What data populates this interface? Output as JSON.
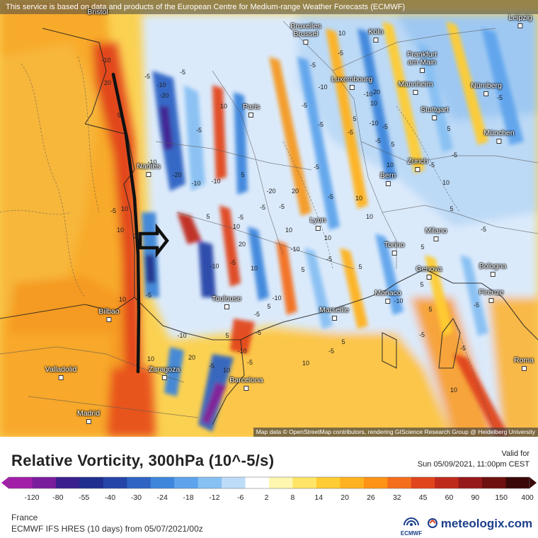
{
  "header": {
    "disclaimer": "This service is based on data and products of the European Centre for Medium-range Weather Forecasts (ECMWF)"
  },
  "map": {
    "attribution": "Map data © OpenStreetMap contributors, rendering GIScience Research Group @ Heidelberg University",
    "cities": [
      {
        "name": "Bristol",
        "key": "bristol"
      },
      {
        "name": "Bruxelles\nBrussel",
        "key": "bruxelles"
      },
      {
        "name": "Köln",
        "key": "koln"
      },
      {
        "name": "Leipzig",
        "key": "leipzig"
      },
      {
        "name": "Frankfurt\nam Main",
        "key": "frankfurt"
      },
      {
        "name": "Luxembourg",
        "key": "luxembourg"
      },
      {
        "name": "Mannheim",
        "key": "mannheim"
      },
      {
        "name": "Nürnberg",
        "key": "nurnberg"
      },
      {
        "name": "Paris",
        "key": "paris"
      },
      {
        "name": "Stuttgart",
        "key": "stuttgart"
      },
      {
        "name": "München",
        "key": "munchen"
      },
      {
        "name": "Nantes",
        "key": "nantes"
      },
      {
        "name": "Zürich",
        "key": "zurich"
      },
      {
        "name": "Bern",
        "key": "bern"
      },
      {
        "name": "Lyon",
        "key": "lyon"
      },
      {
        "name": "Milano",
        "key": "milano"
      },
      {
        "name": "Torino",
        "key": "torino"
      },
      {
        "name": "Bologna",
        "key": "bologna"
      },
      {
        "name": "Genova",
        "key": "genova"
      },
      {
        "name": "Firenze",
        "key": "firenze"
      },
      {
        "name": "Monaco",
        "key": "monaco"
      },
      {
        "name": "Toulouse",
        "key": "toulouse"
      },
      {
        "name": "Marseille",
        "key": "marseille"
      },
      {
        "name": "Bilbao",
        "key": "bilbao"
      },
      {
        "name": "Zaragoza",
        "key": "zaragoza"
      },
      {
        "name": "Valladolid",
        "key": "valladolid"
      },
      {
        "name": "Barcelona",
        "key": "barcelona"
      },
      {
        "name": "Madrid",
        "key": "madrid"
      },
      {
        "name": "Roma",
        "key": "roma"
      }
    ],
    "contour_labels": [
      "-10",
      "20",
      "-5",
      "-10",
      "-20",
      "-5",
      "10",
      "-5",
      "-10",
      "5",
      "10",
      "20",
      "-5",
      "10",
      "5",
      "-10",
      "10",
      "-5",
      "-20",
      "-10",
      "5",
      "-5",
      "10",
      "20",
      "-5",
      "10",
      "-10",
      "-20",
      "-5",
      "10",
      "-5",
      "-5",
      "5",
      "-10",
      "-5",
      "20",
      "-10",
      "10",
      "-5",
      "5",
      "10",
      "10",
      "-5",
      "-5",
      "-10",
      "-5",
      "10",
      "-5",
      "5",
      "-10",
      "-5",
      "20",
      "10",
      "-10",
      "-5",
      "5",
      "-5",
      "10",
      "-5",
      "5",
      "-5",
      "-5",
      "10",
      "5",
      "-5",
      "5",
      "-10",
      "5",
      "-5",
      "10",
      "-5",
      "-5",
      "5",
      "20",
      "-5",
      "10",
      "-10",
      "5",
      "-5",
      "5",
      "-5",
      "10",
      "-5",
      "5",
      "-10",
      "-5",
      "10"
    ]
  },
  "legend": {
    "title": "Relative Vorticity, 300hPa (10^-5/s)",
    "valid_label": "Valid for",
    "valid_time": "Sun 05/09/2021, 11:00pm CEST",
    "ticks": [
      "-120",
      "-80",
      "-55",
      "-40",
      "-30",
      "-24",
      "-18",
      "-12",
      "-6",
      "2",
      "8",
      "14",
      "20",
      "26",
      "32",
      "45",
      "60",
      "90",
      "150",
      "400"
    ],
    "colors": [
      "#a21ea8",
      "#7a1c9e",
      "#3b1f8f",
      "#1f2e8f",
      "#2545a8",
      "#2f63c4",
      "#3e86dc",
      "#5ea4ec",
      "#87c0f3",
      "#bcdcf8",
      "#ffffff",
      "#fff7b0",
      "#ffe466",
      "#ffcc33",
      "#ffb21f",
      "#ff9317",
      "#f46e1b",
      "#e0451d",
      "#c02a1c",
      "#961a1a",
      "#6e1010",
      "#3a0808"
    ],
    "region": "France",
    "model": "ECMWF IFS HRES (10 days) from 05/07/2021/00z",
    "ecmwf_label": "ECMWF",
    "brand": "meteologix.com"
  }
}
